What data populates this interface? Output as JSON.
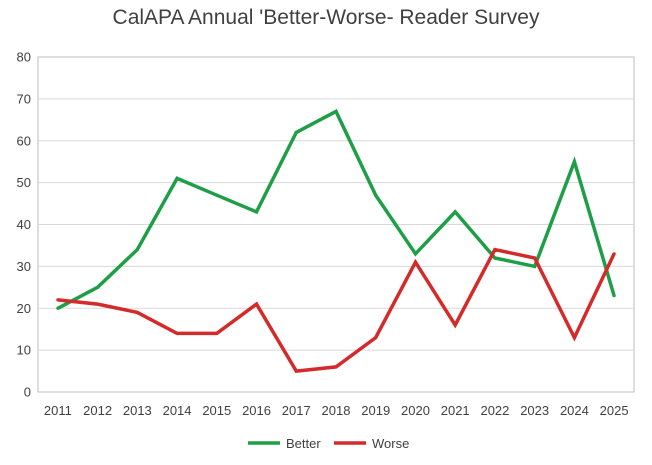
{
  "chart_data": {
    "type": "line",
    "title": "CalAPA Annual 'Better-Worse- Reader Survey",
    "xlabel": "",
    "ylabel": "",
    "categories": [
      "2011",
      "2012",
      "2013",
      "2014",
      "2015",
      "2016",
      "2017",
      "2018",
      "2019",
      "2020",
      "2021",
      "2022",
      "2023",
      "2024",
      "2025"
    ],
    "ylim": [
      0,
      80
    ],
    "yticks": [
      0,
      10,
      20,
      30,
      40,
      50,
      60,
      70,
      80
    ],
    "grid": true,
    "legend_position": "bottom",
    "series": [
      {
        "name": "Better",
        "color": "#1f9e48",
        "values": [
          20,
          25,
          34,
          51,
          47,
          43,
          62,
          67,
          47,
          33,
          43,
          32,
          30,
          55,
          23
        ]
      },
      {
        "name": "Worse",
        "color": "#d42a2a",
        "values": [
          22,
          21,
          19,
          14,
          14,
          21,
          5,
          6,
          13,
          31,
          16,
          34,
          32,
          13,
          33
        ]
      }
    ]
  }
}
